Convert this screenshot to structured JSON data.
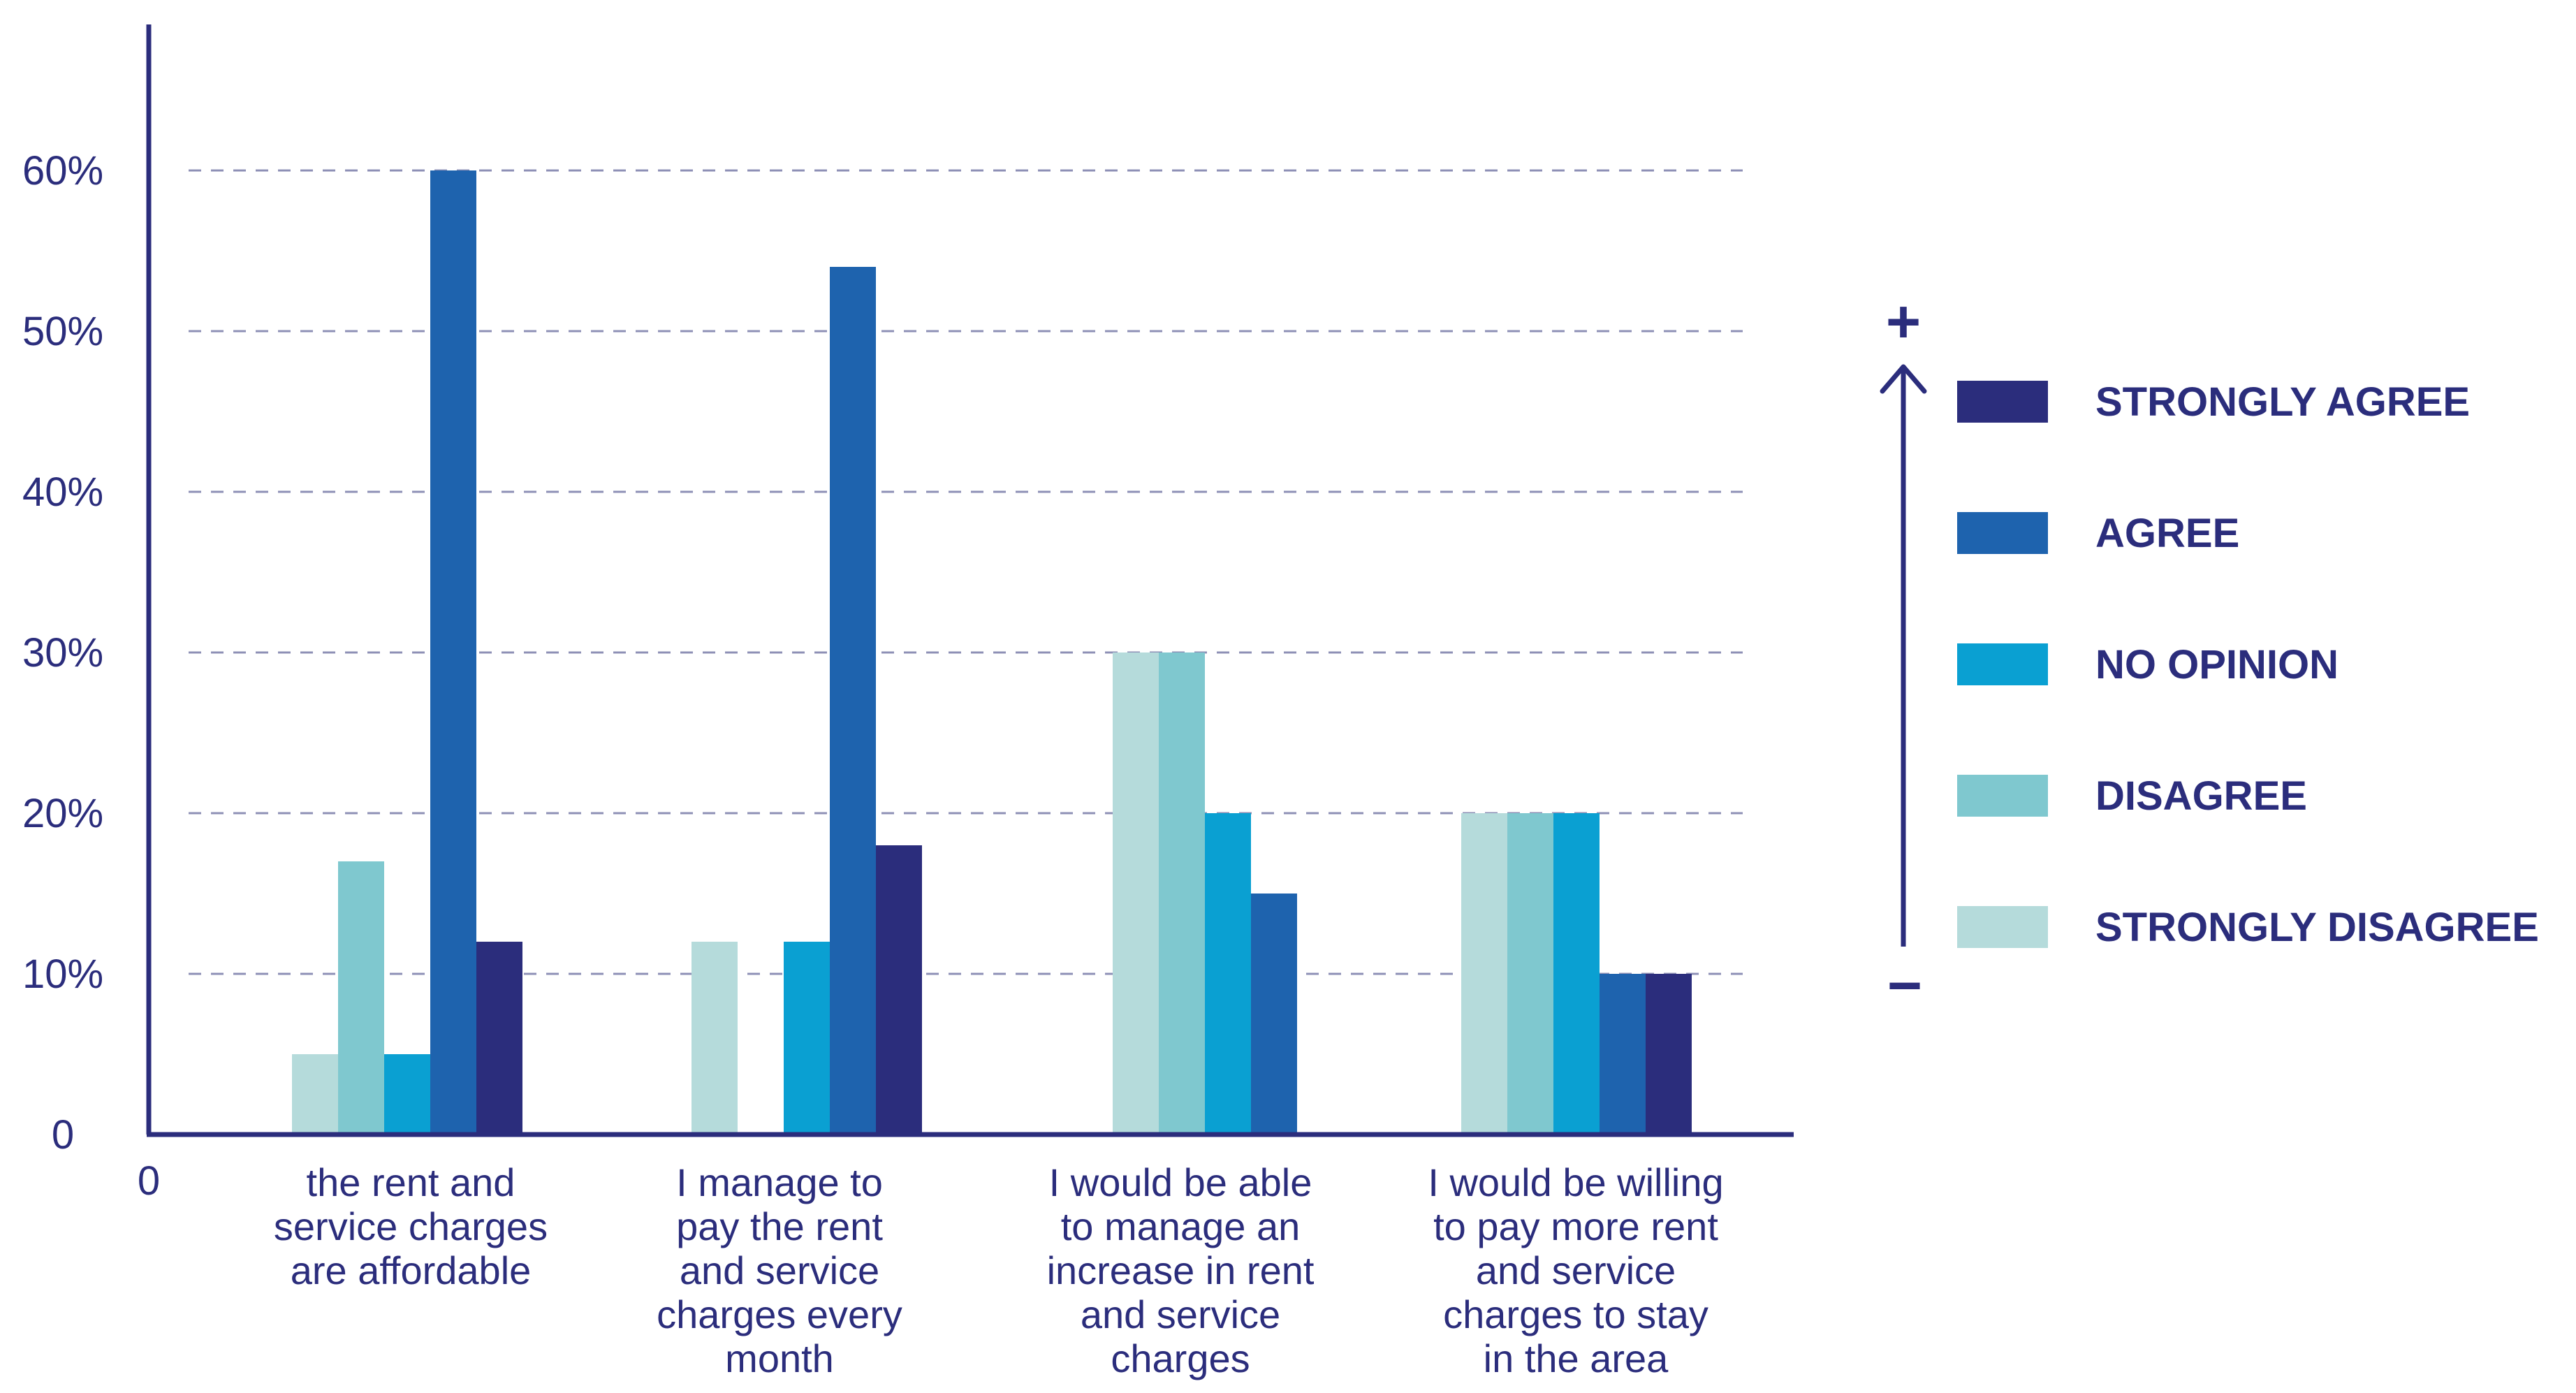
{
  "chart_data": {
    "type": "bar",
    "title": "",
    "xlabel": "",
    "ylabel": "",
    "ylim": [
      0,
      70
    ],
    "y_ticks": [
      {
        "value": 0,
        "label": "0"
      },
      {
        "value": 10,
        "label": "10%"
      },
      {
        "value": 20,
        "label": "20%"
      },
      {
        "value": 30,
        "label": "30%"
      },
      {
        "value": 40,
        "label": "40%"
      },
      {
        "value": 50,
        "label": "50%"
      },
      {
        "value": 60,
        "label": "60%"
      }
    ],
    "x_origin_label": "0",
    "categories": [
      [
        "the rent and",
        "service charges",
        "are affordable"
      ],
      [
        "I manage to",
        "pay the rent",
        "and service",
        "charges every",
        "month"
      ],
      [
        "I would be able",
        "to manage an",
        "increase in rent",
        "and service",
        "charges"
      ],
      [
        "I would be willing",
        "to pay more rent",
        "and service",
        "charges to stay",
        "in the area"
      ]
    ],
    "series": [
      {
        "name": "STRONGLY DISAGREE",
        "color": "#b5dbdb",
        "values": [
          5,
          12,
          30,
          20
        ]
      },
      {
        "name": "DISAGREE",
        "color": "#7fc8cf",
        "values": [
          17,
          0,
          30,
          20
        ]
      },
      {
        "name": "NO OPINION",
        "color": "#0aa0d2",
        "values": [
          5,
          12,
          20,
          20
        ]
      },
      {
        "name": "AGREE",
        "color": "#1e63ae",
        "values": [
          60,
          54,
          15,
          10
        ]
      },
      {
        "name": "STRONGLY AGREE",
        "color": "#2b2d7c",
        "values": [
          12,
          18,
          0,
          10
        ]
      }
    ],
    "legend": {
      "placement": "right",
      "order": [
        "STRONGLY AGREE",
        "AGREE",
        "NO OPINION",
        "DISAGREE",
        "STRONGLY DISAGREE"
      ],
      "plus_symbol": "+",
      "minus_symbol": "−"
    }
  },
  "colors": {
    "axis": "#2b2d7c",
    "grid": "#8e90b6",
    "text": "#2b2d7c"
  }
}
